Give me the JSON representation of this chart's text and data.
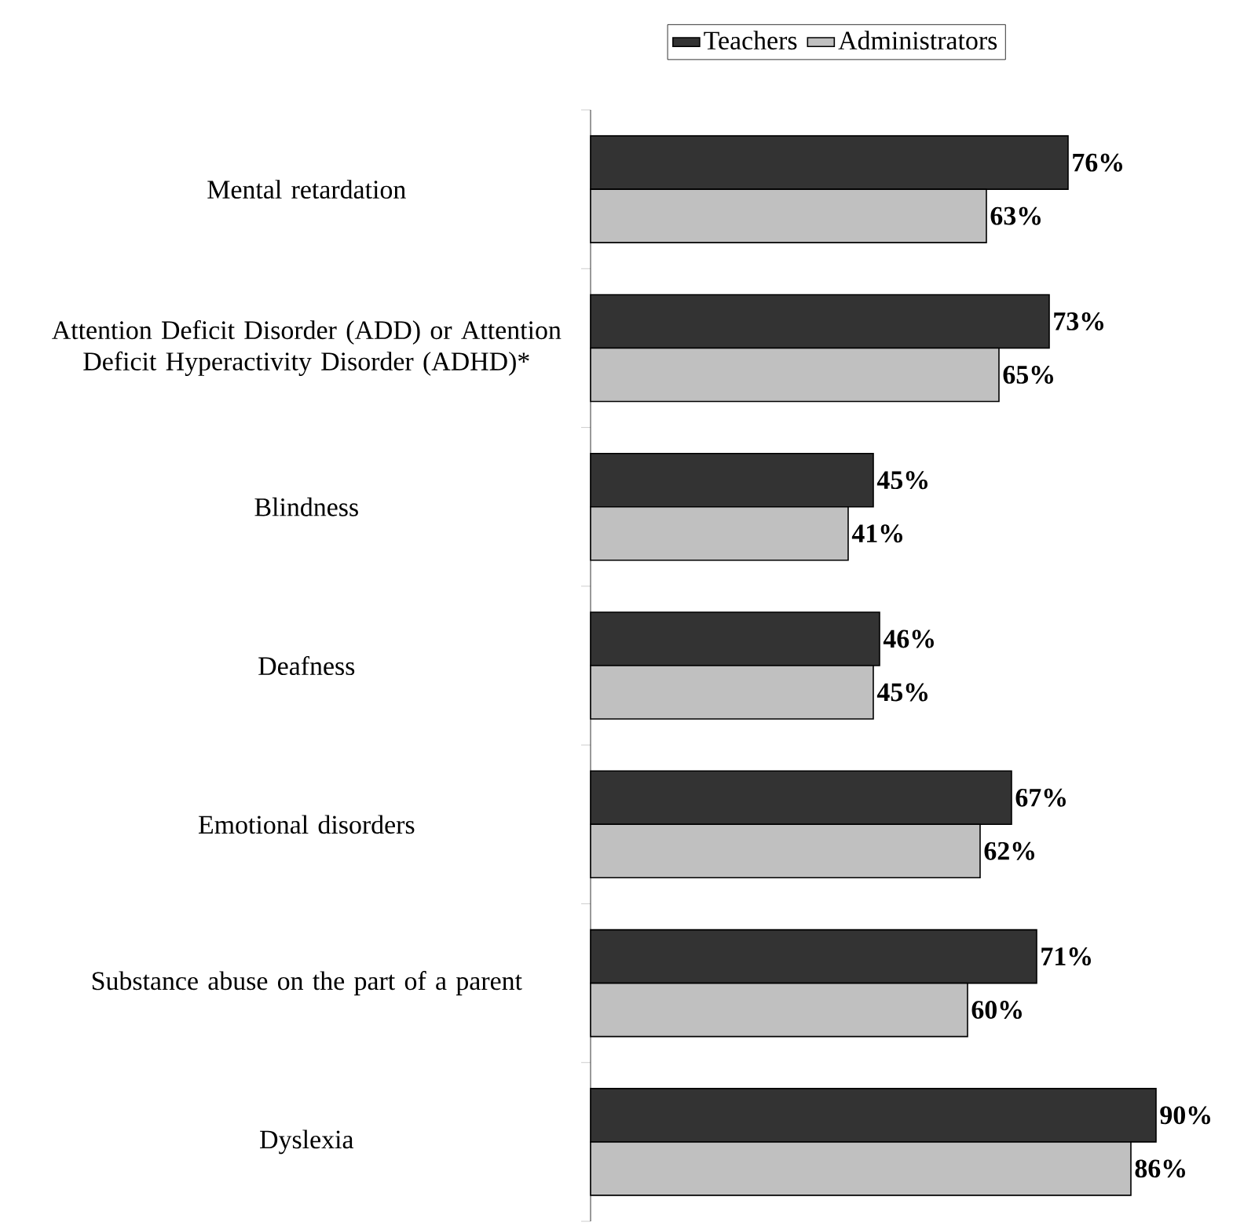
{
  "chart_data": {
    "type": "bar",
    "orientation": "horizontal",
    "categories": [
      "Mental retardation",
      "Attention Deficit Disorder (ADD) or Attention Deficit Hyperactivity Disorder (ADHD)*",
      "Blindness",
      "Deafness",
      "Emotional disorders",
      "Substance abuse on the part of a parent",
      "Dyslexia"
    ],
    "series": [
      {
        "name": "Teachers",
        "color": "#333333",
        "values": [
          76,
          73,
          45,
          46,
          67,
          71,
          90
        ],
        "value_labels": [
          "76%",
          "73%",
          "45%",
          "46%",
          "67%",
          "71%",
          "90%"
        ]
      },
      {
        "name": "Administrators",
        "color": "#c0c0c0",
        "values": [
          63,
          65,
          41,
          45,
          62,
          60,
          86
        ],
        "value_labels": [
          "63%",
          "65%",
          "41%",
          "45%",
          "62%",
          "60%",
          "86%"
        ]
      }
    ],
    "legend": "top",
    "tick_labels": "y"
  }
}
